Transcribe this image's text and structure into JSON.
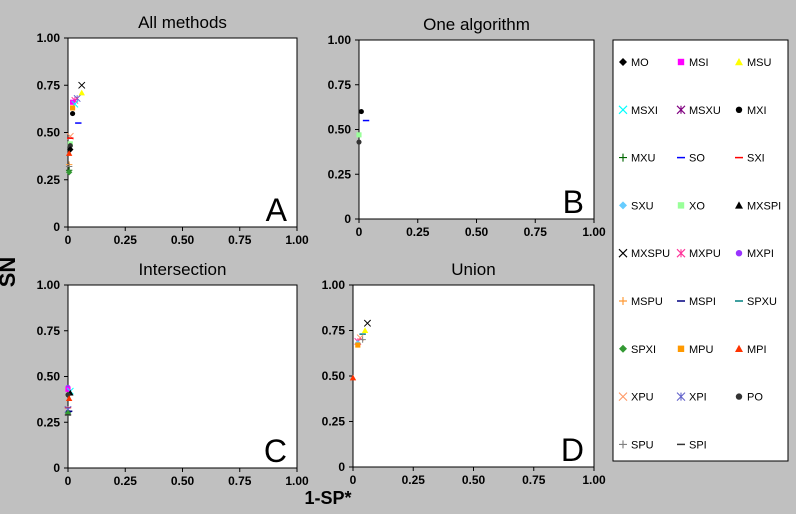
{
  "figure": {
    "ylabel": "SN",
    "xlabel": "1-SP*"
  },
  "legend": [
    {
      "name": "MO",
      "marker": "diamond",
      "color": "#000000"
    },
    {
      "name": "MSI",
      "marker": "square",
      "color": "#ff00ff"
    },
    {
      "name": "MSU",
      "marker": "triangle",
      "color": "#ffff00"
    },
    {
      "name": "MSXI",
      "marker": "x",
      "color": "#00ffff"
    },
    {
      "name": "MSXU",
      "marker": "star",
      "color": "#800080"
    },
    {
      "name": "MXI",
      "marker": "circle",
      "color": "#000000"
    },
    {
      "name": "MXU",
      "marker": "plus",
      "color": "#006600"
    },
    {
      "name": "SO",
      "marker": "dash",
      "color": "#0000ff"
    },
    {
      "name": "SXI",
      "marker": "dash",
      "color": "#ff0000"
    },
    {
      "name": "SXU",
      "marker": "diamond",
      "color": "#66ccff"
    },
    {
      "name": "XO",
      "marker": "square",
      "color": "#99ff99"
    },
    {
      "name": "MXSPI",
      "marker": "triangle",
      "color": "#000000"
    },
    {
      "name": "MXSPU",
      "marker": "x",
      "color": "#000000"
    },
    {
      "name": "MXPU",
      "marker": "star",
      "color": "#ff3399"
    },
    {
      "name": "MXPI",
      "marker": "circle",
      "color": "#9933ff"
    },
    {
      "name": "MSPU",
      "marker": "plus",
      "color": "#ff9933"
    },
    {
      "name": "MSPI",
      "marker": "dash",
      "color": "#000080"
    },
    {
      "name": "SPXU",
      "marker": "dash",
      "color": "#008080"
    },
    {
      "name": "SPXI",
      "marker": "diamond",
      "color": "#339933"
    },
    {
      "name": "MPU",
      "marker": "square",
      "color": "#ff9900"
    },
    {
      "name": "MPI",
      "marker": "triangle",
      "color": "#ff3300"
    },
    {
      "name": "XPU",
      "marker": "x",
      "color": "#ff9966"
    },
    {
      "name": "XPI",
      "marker": "star",
      "color": "#6666cc"
    },
    {
      "name": "PO",
      "marker": "circle",
      "color": "#333333"
    },
    {
      "name": "SPU",
      "marker": "plus",
      "color": "#808080"
    },
    {
      "name": "SPI",
      "marker": "dash",
      "color": "#333333"
    }
  ],
  "chart_data": [
    {
      "type": "scatter",
      "title": "All methods",
      "panel_letter": "A",
      "xlim": [
        0,
        1
      ],
      "ylim": [
        0,
        1
      ],
      "xticks": [
        "0",
        "0.25",
        "0.50",
        "0.75",
        "1.00"
      ],
      "yticks": [
        "0",
        "0.25",
        "0.50",
        "0.75",
        "1.00"
      ],
      "points": [
        {
          "series": "MXSPU",
          "x": 0.06,
          "y": 0.75
        },
        {
          "series": "MSU",
          "x": 0.06,
          "y": 0.71
        },
        {
          "series": "XPI",
          "x": 0.04,
          "y": 0.68
        },
        {
          "series": "MXPU",
          "x": 0.03,
          "y": 0.67
        },
        {
          "series": "MSI",
          "x": 0.02,
          "y": 0.66
        },
        {
          "series": "MSXI",
          "x": 0.03,
          "y": 0.65
        },
        {
          "series": "MPU",
          "x": 0.02,
          "y": 0.63
        },
        {
          "series": "MXI",
          "x": 0.02,
          "y": 0.6
        },
        {
          "series": "SO",
          "x": 0.045,
          "y": 0.55
        },
        {
          "series": "XPU",
          "x": 0.01,
          "y": 0.48
        },
        {
          "series": "SXI",
          "x": 0.01,
          "y": 0.47
        },
        {
          "series": "XO",
          "x": 0.01,
          "y": 0.44
        },
        {
          "series": "PO",
          "x": 0.01,
          "y": 0.43
        },
        {
          "series": "MO",
          "x": 0.01,
          "y": 0.41
        },
        {
          "series": "MPI",
          "x": 0.005,
          "y": 0.39
        },
        {
          "series": "MSPU",
          "x": 0.005,
          "y": 0.33
        },
        {
          "series": "SPU",
          "x": 0.005,
          "y": 0.32
        },
        {
          "series": "MXU",
          "x": 0.005,
          "y": 0.3
        },
        {
          "series": "SPXI",
          "x": 0.005,
          "y": 0.29
        }
      ]
    },
    {
      "type": "scatter",
      "title": "One algorithm",
      "panel_letter": "B",
      "xlim": [
        0,
        1
      ],
      "ylim": [
        0,
        1
      ],
      "xticks": [
        "0",
        "0.25",
        "0.50",
        "0.75",
        "1.00"
      ],
      "yticks": [
        "0",
        "0.25",
        "0.50",
        "0.75",
        "1.00"
      ],
      "points": [
        {
          "series": "MXI",
          "x": 0.01,
          "y": 0.6
        },
        {
          "series": "SO",
          "x": 0.03,
          "y": 0.55
        },
        {
          "series": "XO",
          "x": 0.0,
          "y": 0.47
        },
        {
          "series": "PO",
          "x": 0.0,
          "y": 0.43
        }
      ]
    },
    {
      "type": "scatter",
      "title": "Intersection",
      "panel_letter": "C",
      "xlim": [
        0,
        1
      ],
      "ylim": [
        0,
        1
      ],
      "xticks": [
        "0",
        "0.25",
        "0.50",
        "0.75",
        "1.00"
      ],
      "yticks": [
        "0",
        "0.25",
        "0.50",
        "0.75",
        "1.00"
      ],
      "points": [
        {
          "series": "MXPI",
          "x": 0.0,
          "y": 0.44
        },
        {
          "series": "MSI",
          "x": 0.0,
          "y": 0.43
        },
        {
          "series": "MSXI",
          "x": 0.01,
          "y": 0.42
        },
        {
          "series": "MXSPI",
          "x": 0.01,
          "y": 0.41
        },
        {
          "series": "PO",
          "x": 0.0,
          "y": 0.4
        },
        {
          "series": "MPI",
          "x": 0.005,
          "y": 0.38
        },
        {
          "series": "SXI",
          "x": 0.0,
          "y": 0.33
        },
        {
          "series": "XPI",
          "x": 0.0,
          "y": 0.32
        },
        {
          "series": "MSPI",
          "x": 0.005,
          "y": 0.31
        },
        {
          "series": "SPXI",
          "x": 0.0,
          "y": 0.3
        },
        {
          "series": "SPI",
          "x": 0.0,
          "y": 0.29
        }
      ]
    },
    {
      "type": "scatter",
      "title": "Union",
      "panel_letter": "D",
      "xlim": [
        0,
        1
      ],
      "ylim": [
        0,
        1
      ],
      "xticks": [
        "0",
        "0.25",
        "0.50",
        "0.75",
        "1.00"
      ],
      "yticks": [
        "0",
        "0.25",
        "0.50",
        "0.75",
        "1.00"
      ],
      "points": [
        {
          "series": "MXSPU",
          "x": 0.06,
          "y": 0.79
        },
        {
          "series": "MSU",
          "x": 0.05,
          "y": 0.75
        },
        {
          "series": "SPXU",
          "x": 0.04,
          "y": 0.73
        },
        {
          "series": "XPU",
          "x": 0.03,
          "y": 0.71
        },
        {
          "series": "SPU",
          "x": 0.04,
          "y": 0.7
        },
        {
          "series": "MXPU",
          "x": 0.02,
          "y": 0.69
        },
        {
          "series": "SXU",
          "x": 0.02,
          "y": 0.68
        },
        {
          "series": "MPU",
          "x": 0.02,
          "y": 0.67
        },
        {
          "series": "MPI",
          "x": 0.0,
          "y": 0.49
        }
      ]
    }
  ]
}
